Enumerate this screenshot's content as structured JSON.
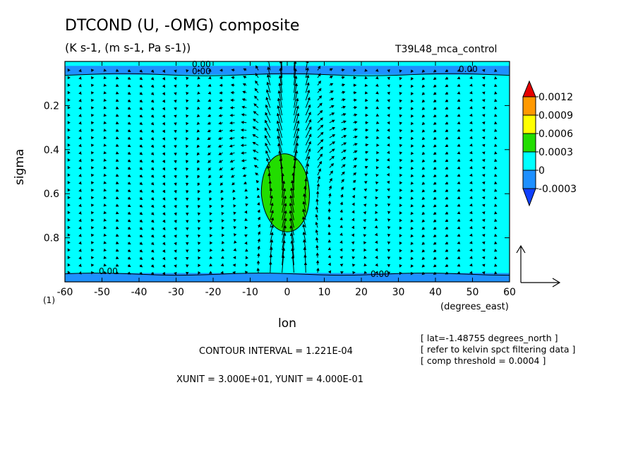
{
  "header": {
    "title": "DTCOND (U, -OMG) composite",
    "subtitle": "(K s-1, (m s-1, Pa s-1))",
    "run_name": "T39L48_mca_control"
  },
  "footer": {
    "contour_interval": "CONTOUR INTERVAL = 1.221E-04",
    "units": "XUNIT = 3.000E+01, YUNIT = 4.000E-01",
    "notes": [
      "[ lat=-1.48755 degrees_north ]",
      "[ refer to kelvin spct filtering data ]",
      "[ comp threshold = 0.0004 ]"
    ]
  },
  "chart_data": {
    "type": "contour-vector",
    "xlabel": "lon",
    "xunits": "(degrees_east)",
    "ylabel": "sigma",
    "panel_label": "(1)",
    "xlim": [
      -60,
      60
    ],
    "ylim": [
      1.0,
      0.0
    ],
    "x_ticks": [
      -60,
      -50,
      -40,
      -30,
      -20,
      -10,
      0,
      10,
      20,
      30,
      40,
      50,
      60
    ],
    "x_tick_labels": [
      "-60",
      "-50",
      "-40",
      "-30",
      "-20",
      "-10",
      "0",
      "10",
      "20",
      "30",
      "40",
      "50",
      "60"
    ],
    "y_ticks": [
      0.2,
      0.4,
      0.6,
      0.8
    ],
    "y_tick_labels": [
      "0.2",
      "0.4",
      "0.6",
      "0.8"
    ],
    "colorbar": {
      "levels": [
        "0.0012",
        "0.0009",
        "0.0006",
        "0.0003",
        "0",
        "-0.0003"
      ],
      "colors": [
        "#e60000",
        "#ff9900",
        "#ffff00",
        "#22dd00",
        "#00ffff",
        "#1e90ff",
        "#1040ff"
      ]
    },
    "contour_labels": [
      "0.00",
      "0.00",
      "0.00",
      "0.00",
      "0.00"
    ],
    "features": [
      {
        "type": "positive_heating",
        "lon_range": [
          -7,
          6
        ],
        "sigma_range": [
          0.38,
          0.82
        ],
        "max_value": 0.0006
      },
      {
        "type": "negative_layer",
        "sigma_range": [
          0.02,
          0.06
        ]
      },
      {
        "type": "negative_layer",
        "sigma_range": [
          0.96,
          1.0
        ]
      }
    ],
    "reference_vector": {
      "x_label": "XUNIT = 3.000E+01",
      "y_label": "YUNIT = 4.000E-01"
    }
  }
}
